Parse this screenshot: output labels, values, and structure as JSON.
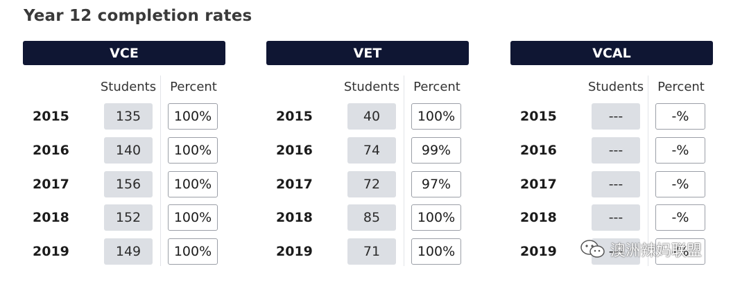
{
  "title": "Year 12 completion rates",
  "column_headers": {
    "students": "Students",
    "percent": "Percent"
  },
  "panels": [
    {
      "name": "VCE",
      "rows": [
        {
          "year": "2015",
          "students": "135",
          "percent": "100%"
        },
        {
          "year": "2016",
          "students": "140",
          "percent": "100%"
        },
        {
          "year": "2017",
          "students": "156",
          "percent": "100%"
        },
        {
          "year": "2018",
          "students": "152",
          "percent": "100%"
        },
        {
          "year": "2019",
          "students": "149",
          "percent": "100%"
        }
      ]
    },
    {
      "name": "VET",
      "rows": [
        {
          "year": "2015",
          "students": "40",
          "percent": "100%"
        },
        {
          "year": "2016",
          "students": "74",
          "percent": "99%"
        },
        {
          "year": "2017",
          "students": "72",
          "percent": "97%"
        },
        {
          "year": "2018",
          "students": "85",
          "percent": "100%"
        },
        {
          "year": "2019",
          "students": "71",
          "percent": "100%"
        }
      ]
    },
    {
      "name": "VCAL",
      "rows": [
        {
          "year": "2015",
          "students": "---",
          "percent": "-%"
        },
        {
          "year": "2016",
          "students": "---",
          "percent": "-%"
        },
        {
          "year": "2017",
          "students": "---",
          "percent": "-%"
        },
        {
          "year": "2018",
          "students": "---",
          "percent": "-%"
        },
        {
          "year": "2019",
          "students": "---",
          "percent": "-%"
        }
      ]
    }
  ],
  "watermark": {
    "text": "澳洲辣妈联盟",
    "icon": "wechat-icon"
  },
  "colors": {
    "header_bg": "#0f1633",
    "students_box_bg": "#dcdfe4",
    "percent_box_border": "#9a9ea6"
  }
}
